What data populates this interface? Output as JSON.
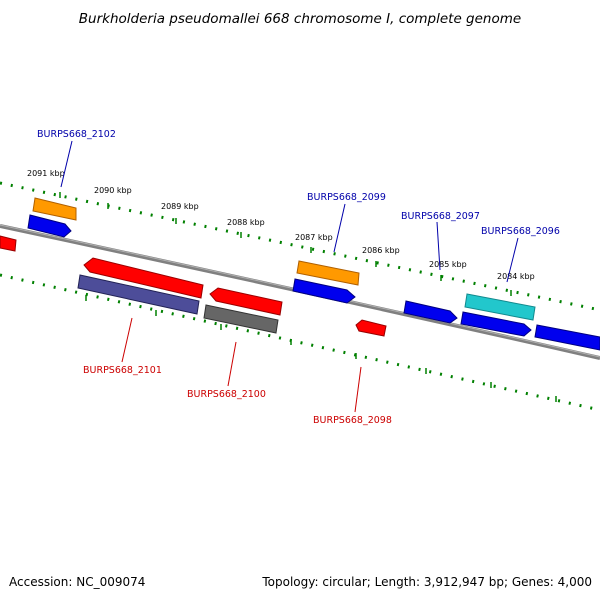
{
  "title": "Burkholderia pseudomallei 668 chromosome I, complete genome",
  "footer": {
    "accession": "Accession: NC_009074",
    "summary": "Topology: circular; Length: 3,912,947 bp; Genes: 4,000"
  },
  "scale_labels": [
    "2091 kbp",
    "2090 kbp",
    "2089 kbp",
    "2088 kbp",
    "2087 kbp",
    "2086 kbp",
    "2085 kbp",
    "2084 kbp"
  ],
  "gene_labels": {
    "top": [
      "BURPS668_2102",
      "BURPS668_2099",
      "BURPS668_2097",
      "BURPS668_2096"
    ],
    "bottom": [
      "BURPS668_2101",
      "BURPS668_2100",
      "BURPS668_2098"
    ]
  },
  "colors": {
    "forward_label": "#0000aa",
    "reverse_label": "#cc0000",
    "backbone": "#808080",
    "ticks": "#008000",
    "blue_feature": "#0000ee",
    "red_feature": "#ff0000",
    "orange_feature": "#ff9900",
    "cyan_feature": "#22c7cc",
    "purple_feature": "#4d4d99",
    "gray_feature": "#666666"
  }
}
